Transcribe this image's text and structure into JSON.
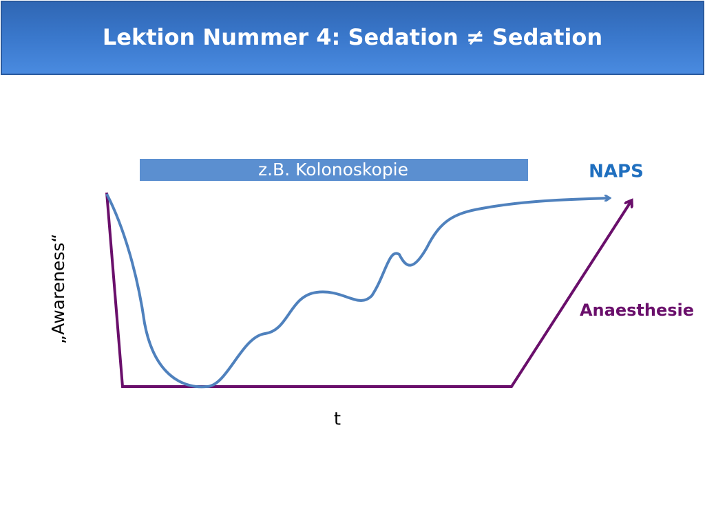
{
  "header": {
    "title": "Lektion Nummer 4: Sedation ≠ Sedation"
  },
  "diagram": {
    "procedure_label": "z.B. Kolonoskopie",
    "naps_label": "NAPS",
    "anaesthesia_label": "Anaesthesie",
    "y_axis_label": "„Awareness“",
    "x_axis_label": "t"
  }
}
